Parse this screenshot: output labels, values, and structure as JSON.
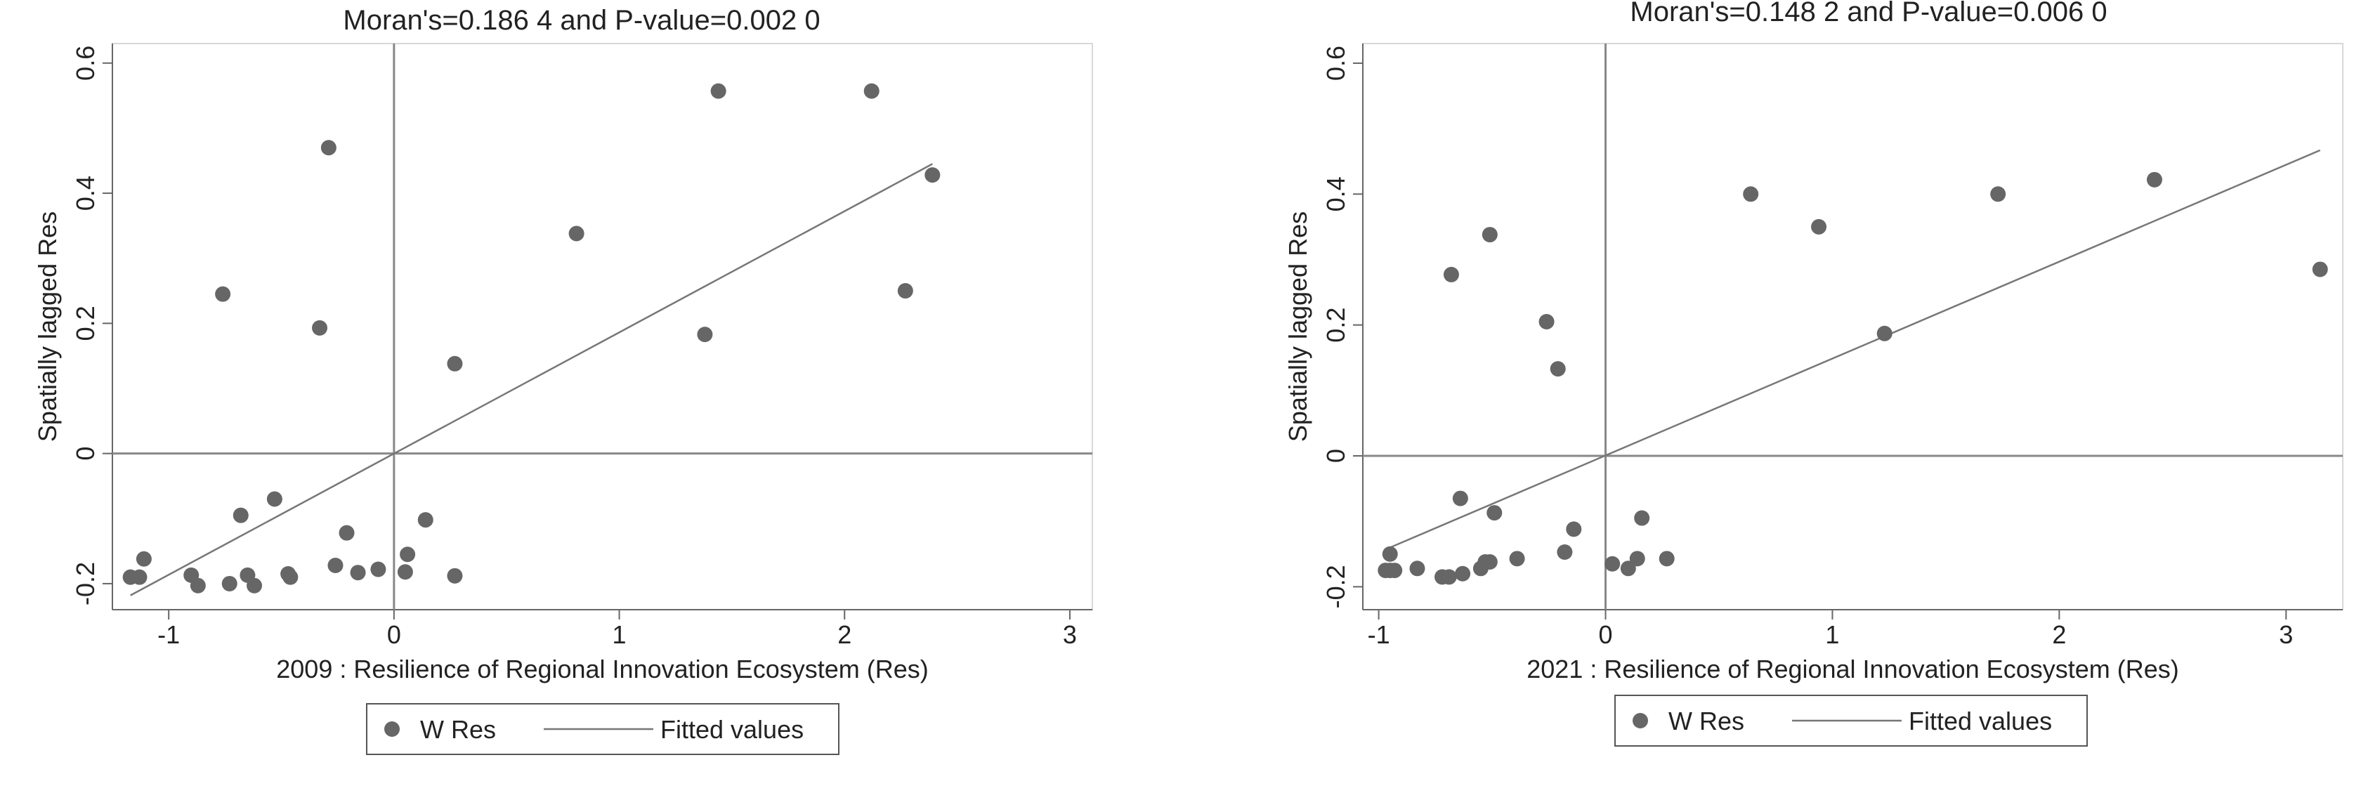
{
  "chart_data": [
    {
      "type": "scatter",
      "title": "Moran's=0.186 4 and P-value=0.002 0",
      "xlabel": "2009 : Resilience of Regional Innovation Ecosystem (Res)",
      "ylabel": "Spatially lagged Res",
      "xlim": [
        -1.25,
        3.1
      ],
      "ylim": [
        -0.24,
        0.63
      ],
      "xticks": [
        -1,
        0,
        1,
        2,
        3
      ],
      "xtick_labels": [
        "-1",
        "0",
        "1",
        "2",
        "3"
      ],
      "yticks": [
        -0.2,
        0,
        0.2,
        0.4,
        0.6
      ],
      "ytick_labels": [
        "-0.2",
        "0",
        "0.2",
        "0.4",
        "0.6"
      ],
      "legend": {
        "position": "bottom",
        "entries": [
          "W Res",
          "Fitted values"
        ]
      },
      "series": [
        {
          "name": "W Res",
          "points": [
            [
              -1.17,
              -0.19
            ],
            [
              -1.13,
              -0.19
            ],
            [
              -1.11,
              -0.162
            ],
            [
              -0.9,
              -0.187
            ],
            [
              -0.87,
              -0.203
            ],
            [
              -0.73,
              -0.2
            ],
            [
              -0.65,
              -0.187
            ],
            [
              -0.62,
              -0.203
            ],
            [
              -0.47,
              -0.185
            ],
            [
              -0.46,
              -0.19
            ],
            [
              -0.76,
              0.245
            ],
            [
              -0.68,
              -0.095
            ],
            [
              -0.53,
              -0.07
            ],
            [
              -0.33,
              0.193
            ],
            [
              -0.29,
              0.47
            ],
            [
              -0.26,
              -0.172
            ],
            [
              -0.21,
              -0.122
            ],
            [
              -0.16,
              -0.183
            ],
            [
              -0.07,
              -0.178
            ],
            [
              0.05,
              -0.182
            ],
            [
              0.06,
              -0.155
            ],
            [
              0.14,
              -0.102
            ],
            [
              0.27,
              0.138
            ],
            [
              0.27,
              -0.188
            ],
            [
              0.81,
              0.338
            ],
            [
              1.38,
              0.183
            ],
            [
              1.44,
              0.557
            ],
            [
              2.12,
              0.557
            ],
            [
              2.27,
              0.25
            ],
            [
              2.39,
              0.428
            ]
          ]
        },
        {
          "name": "Fitted values",
          "line": [
            [
              -1.17,
              -0.218
            ],
            [
              2.39,
              0.445
            ]
          ]
        }
      ]
    },
    {
      "type": "scatter",
      "title": "Moran's=0.148 2 and P-value=0.006 0",
      "xlabel": "2021 : Resilience of Regional Innovation Ecosystem (Res)",
      "ylabel": "Spatially lagged Res",
      "xlim": [
        -1.07,
        3.25
      ],
      "ylim": [
        -0.235,
        0.63
      ],
      "xticks": [
        -1,
        0,
        1,
        2,
        3
      ],
      "xtick_labels": [
        "-1",
        "0",
        "1",
        "2",
        "3"
      ],
      "yticks": [
        -0.2,
        0,
        0.2,
        0.4,
        0.6
      ],
      "ytick_labels": [
        "-0.2",
        "0",
        "0.2",
        "0.4",
        "0.6"
      ],
      "legend": {
        "position": "bottom",
        "entries": [
          "W Res",
          "Fitted values"
        ]
      },
      "series": [
        {
          "name": "W Res",
          "points": [
            [
              -0.97,
              -0.175
            ],
            [
              -0.95,
              -0.15
            ],
            [
              -0.95,
              -0.175
            ],
            [
              -0.93,
              -0.175
            ],
            [
              -0.83,
              -0.172
            ],
            [
              -0.72,
              -0.185
            ],
            [
              -0.69,
              -0.185
            ],
            [
              -0.63,
              -0.18
            ],
            [
              -0.55,
              -0.172
            ],
            [
              -0.53,
              -0.162
            ],
            [
              -0.51,
              -0.162
            ],
            [
              -0.68,
              0.277
            ],
            [
              -0.64,
              -0.065
            ],
            [
              -0.51,
              0.338
            ],
            [
              -0.49,
              -0.087
            ],
            [
              -0.39,
              -0.157
            ],
            [
              -0.26,
              0.205
            ],
            [
              -0.21,
              0.133
            ],
            [
              -0.18,
              -0.147
            ],
            [
              -0.14,
              -0.112
            ],
            [
              0.03,
              -0.165
            ],
            [
              0.1,
              -0.172
            ],
            [
              0.14,
              -0.157
            ],
            [
              0.16,
              -0.095
            ],
            [
              0.27,
              -0.157
            ],
            [
              0.64,
              0.4
            ],
            [
              0.94,
              0.35
            ],
            [
              1.23,
              0.187
            ],
            [
              1.73,
              0.4
            ],
            [
              2.42,
              0.422
            ],
            [
              3.15,
              0.285
            ]
          ]
        },
        {
          "name": "Fitted values",
          "line": [
            [
              -0.97,
              -0.143
            ],
            [
              3.15,
              0.467
            ]
          ]
        }
      ]
    }
  ]
}
